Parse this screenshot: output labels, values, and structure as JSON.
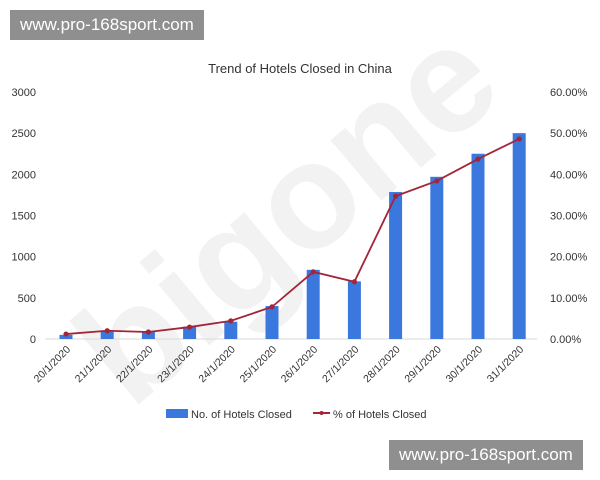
{
  "watermarks": {
    "top": "www.pro-168sport.com",
    "bottom": "www.pro-168sport.com",
    "logo": "bigone"
  },
  "chart_data": {
    "type": "bar",
    "title": "Trend of Hotels Closed in China",
    "categories": [
      "20/1/2020",
      "21/1/2020",
      "22/1/2020",
      "23/1/2020",
      "24/1/2020",
      "25/1/2020",
      "26/1/2020",
      "27/1/2020",
      "28/1/2020",
      "29/1/2020",
      "30/1/2020",
      "31/1/2020"
    ],
    "series": [
      {
        "name": "No. of Hotels Closed",
        "type": "bar",
        "axis": "left",
        "color": "#3a78de",
        "values": [
          50,
          100,
          95,
          150,
          210,
          400,
          840,
          700,
          1785,
          1970,
          2250,
          2500
        ]
      },
      {
        "name": "% of Hotels Closed",
        "type": "line",
        "axis": "right",
        "color": "#a3253a",
        "values": [
          1.2,
          2.0,
          1.7,
          2.9,
          4.4,
          7.8,
          16.3,
          13.9,
          34.7,
          38.4,
          43.7,
          48.6
        ]
      }
    ],
    "y_left": {
      "range": [
        0,
        3000
      ],
      "ticks": [
        "0",
        "500",
        "1000",
        "1500",
        "2000",
        "2500",
        "3000"
      ]
    },
    "y_right": {
      "range": [
        0,
        60
      ],
      "ticks": [
        "0.00%",
        "10.00%",
        "20.00%",
        "30.00%",
        "40.00%",
        "50.00%",
        "60.00%"
      ]
    },
    "grid": false,
    "legend": "bottom"
  }
}
